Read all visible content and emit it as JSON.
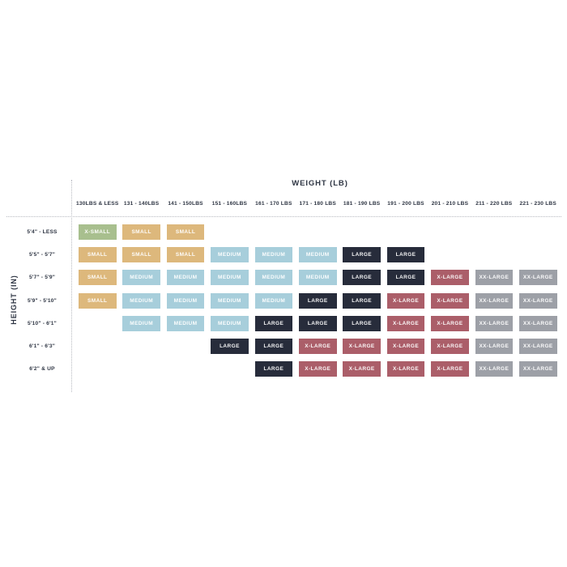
{
  "chart_data": {
    "type": "heatmap",
    "title": "WEIGHT (LB)",
    "xlabel": "WEIGHT (LB)",
    "ylabel": "HEIGHT (IN)",
    "x_categories": [
      "130LBS & LESS",
      "131 - 140LBS",
      "141 - 150LBS",
      "151 - 160LBS",
      "161 - 170 LBS",
      "171 - 180 LBS",
      "181 - 190 LBS",
      "191 - 200 LBS",
      "201 - 210 LBS",
      "211 - 220 LBS",
      "221 - 230 LBS"
    ],
    "y_categories": [
      "5'4\" - LESS",
      "5'5\" - 5'7\"",
      "5'7\" - 5'9\"",
      "5'9\" - 5'10\"",
      "5'10\" - 6'1\"",
      "6'1\" - 6'3\"",
      "6'2\" & UP"
    ],
    "matrix": [
      [
        "X-SMALL",
        "SMALL",
        "SMALL",
        null,
        null,
        null,
        null,
        null,
        null,
        null,
        null
      ],
      [
        "SMALL",
        "SMALL",
        "SMALL",
        "MEDIUM",
        "MEDIUM",
        "MEDIUM",
        "LARGE",
        "LARGE",
        null,
        null,
        null
      ],
      [
        "SMALL",
        "MEDIUM",
        "MEDIUM",
        "MEDIUM",
        "MEDIUM",
        "MEDIUM",
        "LARGE",
        "LARGE",
        "X-LARGE",
        "XX-LARGE",
        "XX-LARGE"
      ],
      [
        "SMALL",
        "MEDIUM",
        "MEDIUM",
        "MEDIUM",
        "MEDIUM",
        "LARGE",
        "LARGE",
        "X-LARGE",
        "X-LARGE",
        "XX-LARGE",
        "XX-LARGE"
      ],
      [
        null,
        "MEDIUM",
        "MEDIUM",
        "MEDIUM",
        "LARGE",
        "LARGE",
        "LARGE",
        "X-LARGE",
        "X-LARGE",
        "XX-LARGE",
        "XX-LARGE"
      ],
      [
        null,
        null,
        null,
        "LARGE",
        "LARGE",
        "X-LARGE",
        "X-LARGE",
        "X-LARGE",
        "X-LARGE",
        "XX-LARGE",
        "XX-LARGE"
      ],
      [
        null,
        null,
        null,
        null,
        "LARGE",
        "X-LARGE",
        "X-LARGE",
        "X-LARGE",
        "X-LARGE",
        "XX-LARGE",
        "XX-LARGE"
      ]
    ],
    "size_colors": {
      "X-SMALL": "#a8bf8e",
      "SMALL": "#ddb87c",
      "MEDIUM": "#a7cedb",
      "LARGE": "#272c3b",
      "X-LARGE": "#ab5e69",
      "XX-LARGE": "#9da0a7"
    },
    "text_color": "#2e3543",
    "grid": "dotted-axis-lines",
    "legend_position": "none"
  }
}
